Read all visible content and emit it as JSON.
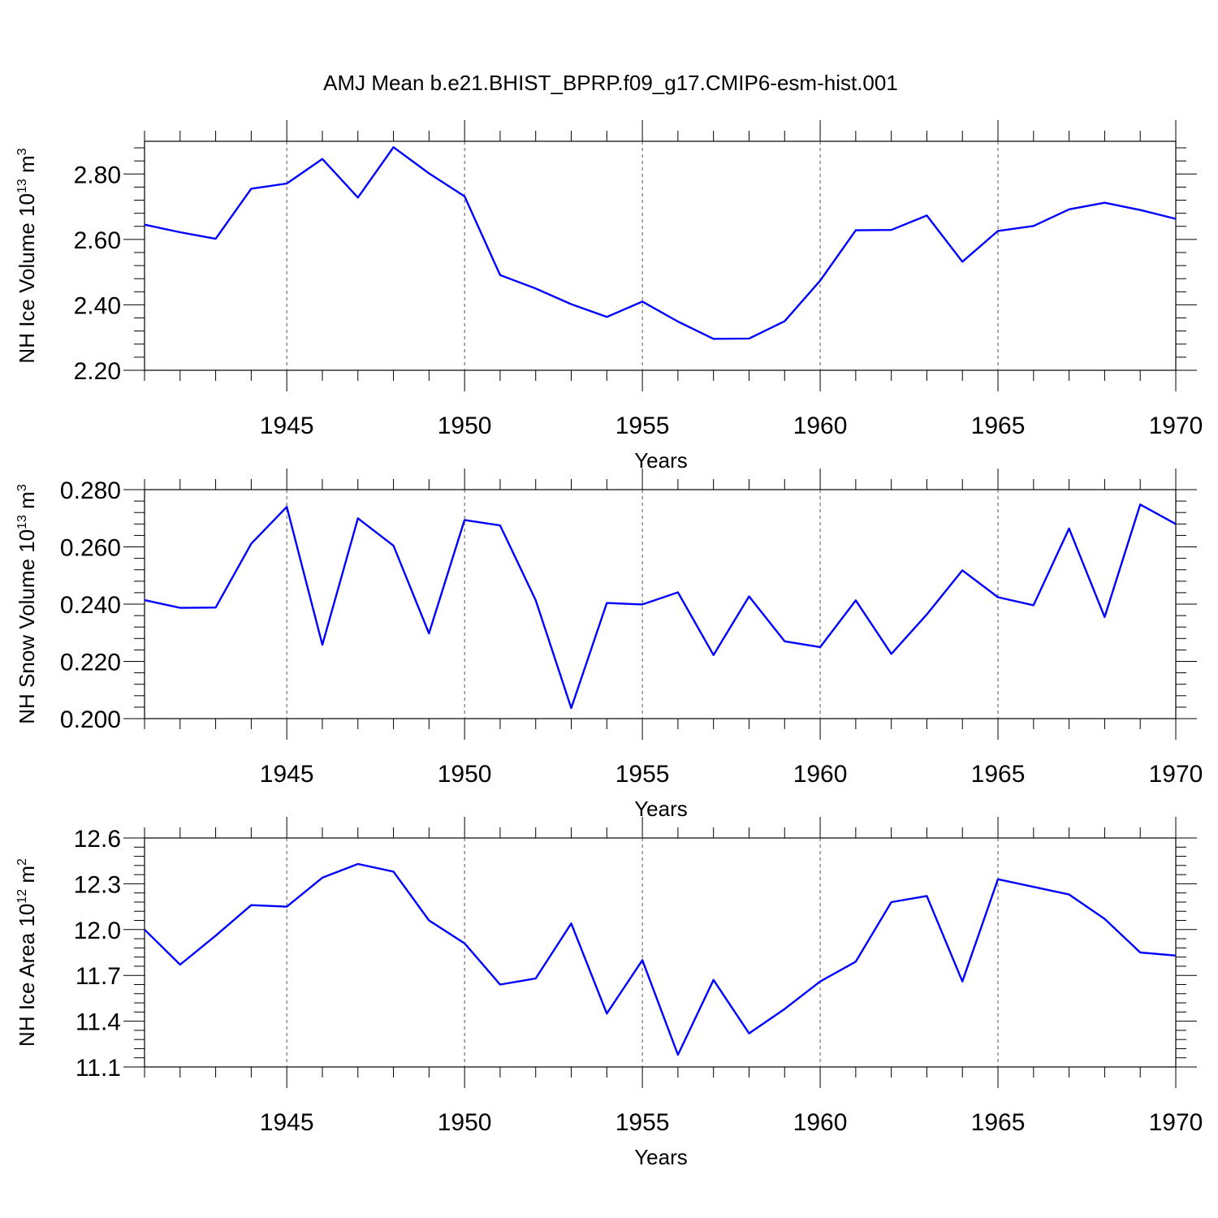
{
  "title": "AMJ Mean b.e21.BHIST_BPRP.f09_g17.CMIP6-esm-hist.001",
  "colors": {
    "series": "#0000ff",
    "axes": "#000000",
    "grid": "#555555"
  },
  "chart_data": [
    {
      "type": "line",
      "ylabel_main": "NH Ice Volume 10",
      "ylabel_exp": "13",
      "ylabel_unit": " m",
      "ylabel_unit_exp": "3",
      "xlabel": "Years",
      "xlim": [
        1941,
        1970
      ],
      "ylim": [
        2.2,
        2.9
      ],
      "yticks": [
        "2.20",
        "2.40",
        "2.60",
        "2.80"
      ],
      "ytick_values": [
        2.2,
        2.4,
        2.6,
        2.8
      ],
      "xticks": [
        "1945",
        "1950",
        "1955",
        "1960",
        "1965",
        "1970"
      ],
      "xtick_values": [
        1945,
        1950,
        1955,
        1960,
        1965,
        1970
      ],
      "grid": "vertical dashed at major x ticks",
      "series": [
        {
          "x": [
            1941,
            1942,
            1943,
            1944,
            1945,
            1946,
            1947,
            1948,
            1949,
            1950,
            1951,
            1952,
            1953,
            1954,
            1955,
            1956,
            1957,
            1958,
            1959,
            1960,
            1961,
            1962,
            1963,
            1964,
            1965,
            1966,
            1967,
            1968,
            1969,
            1970
          ],
          "values": [
            2.645,
            2.622,
            2.602,
            2.755,
            2.771,
            2.846,
            2.728,
            2.882,
            2.802,
            2.732,
            2.491,
            2.45,
            2.402,
            2.363,
            2.41,
            2.349,
            2.296,
            2.297,
            2.35,
            2.474,
            2.628,
            2.629,
            2.673,
            2.532,
            2.626,
            2.641,
            2.692,
            2.712,
            2.69,
            2.663
          ]
        }
      ]
    },
    {
      "type": "line",
      "ylabel_main": "NH Snow Volume 10",
      "ylabel_exp": "13",
      "ylabel_unit": " m",
      "ylabel_unit_exp": "3",
      "xlabel": "Years",
      "xlim": [
        1941,
        1970
      ],
      "ylim": [
        0.2,
        0.28
      ],
      "yticks": [
        "0.200",
        "0.220",
        "0.240",
        "0.260",
        "0.280"
      ],
      "ytick_values": [
        0.2,
        0.22,
        0.24,
        0.26,
        0.28
      ],
      "xticks": [
        "1945",
        "1950",
        "1955",
        "1960",
        "1965",
        "1970"
      ],
      "xtick_values": [
        1945,
        1950,
        1955,
        1960,
        1965,
        1970
      ],
      "grid": "vertical dashed at major x ticks",
      "series": [
        {
          "x": [
            1941,
            1942,
            1943,
            1944,
            1945,
            1946,
            1947,
            1948,
            1949,
            1950,
            1951,
            1952,
            1953,
            1954,
            1955,
            1956,
            1957,
            1958,
            1959,
            1960,
            1961,
            1962,
            1963,
            1964,
            1965,
            1966,
            1967,
            1968,
            1969,
            1970
          ],
          "values": [
            0.2414,
            0.2387,
            0.2388,
            0.2611,
            0.274,
            0.2258,
            0.27,
            0.2604,
            0.2298,
            0.2694,
            0.2675,
            0.2414,
            0.2037,
            0.2404,
            0.2399,
            0.2441,
            0.2222,
            0.2427,
            0.227,
            0.225,
            0.2413,
            0.2226,
            0.2364,
            0.2518,
            0.2424,
            0.2396,
            0.2664,
            0.2355,
            0.2748,
            0.268
          ]
        }
      ]
    },
    {
      "type": "line",
      "ylabel_main": "NH Ice Area 10",
      "ylabel_exp": "12",
      "ylabel_unit": " m",
      "ylabel_unit_exp": "2",
      "xlabel": "Years",
      "xlim": [
        1941,
        1970
      ],
      "ylim": [
        11.1,
        12.6
      ],
      "yticks": [
        "11.1",
        "11.4",
        "11.7",
        "12.0",
        "12.3",
        "12.6"
      ],
      "ytick_values": [
        11.1,
        11.4,
        11.7,
        12.0,
        12.3,
        12.6
      ],
      "xticks": [
        "1945",
        "1950",
        "1955",
        "1960",
        "1965",
        "1970"
      ],
      "xtick_values": [
        1945,
        1950,
        1955,
        1960,
        1965,
        1970
      ],
      "grid": "vertical dashed at major x ticks",
      "series": [
        {
          "x": [
            1941,
            1942,
            1943,
            1944,
            1945,
            1946,
            1947,
            1948,
            1949,
            1950,
            1951,
            1952,
            1953,
            1954,
            1955,
            1956,
            1957,
            1958,
            1959,
            1960,
            1961,
            1962,
            1963,
            1964,
            1965,
            1966,
            1967,
            1968,
            1969,
            1970
          ],
          "values": [
            12.0,
            11.77,
            11.96,
            12.16,
            12.15,
            12.34,
            12.43,
            12.38,
            12.06,
            11.91,
            11.64,
            11.68,
            12.04,
            11.45,
            11.8,
            11.18,
            11.67,
            11.32,
            11.48,
            11.66,
            11.79,
            12.18,
            12.22,
            11.66,
            12.33,
            12.28,
            12.23,
            12.07,
            11.85,
            11.83
          ]
        }
      ]
    }
  ]
}
